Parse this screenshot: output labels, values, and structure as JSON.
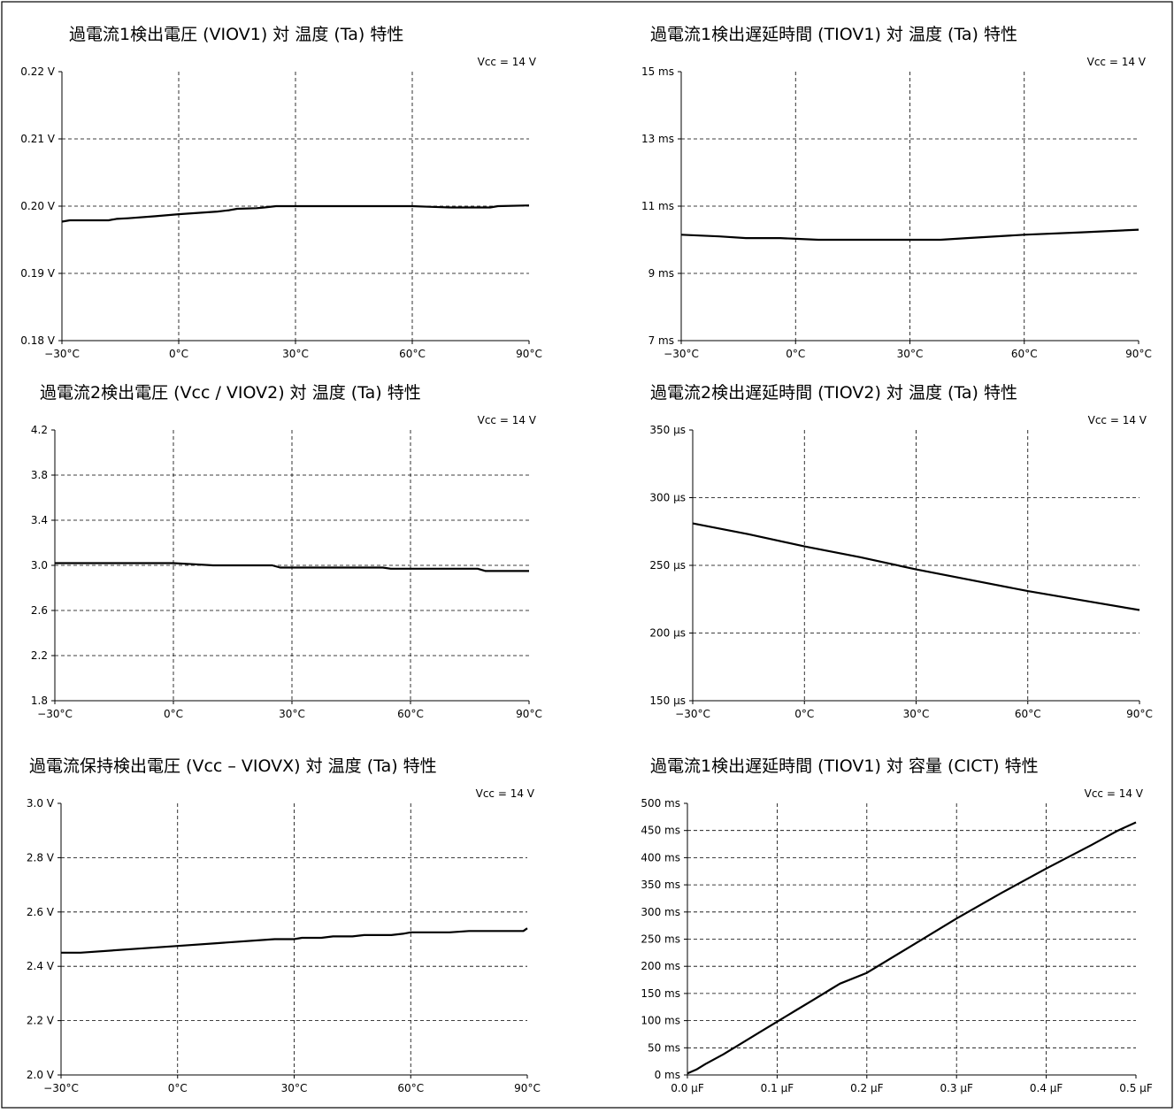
{
  "chart_data": [
    {
      "type": "line",
      "title": "過電流1検出電圧 (VIOV1) 対 温度 (Ta) 特性",
      "condition": "Vcc = 14 V",
      "xlim": [
        -30,
        90
      ],
      "ylim": [
        0.18,
        0.22
      ],
      "xticks": [
        -30,
        0,
        30,
        60,
        90
      ],
      "yticks": [
        0.18,
        0.19,
        0.2,
        0.21,
        0.22
      ],
      "xtick_labels": [
        "−30°C",
        "0°C",
        "30°C",
        "60°C",
        "90°C"
      ],
      "ytick_labels": [
        "0.18 V",
        "0.19 V",
        "0.20 V",
        "0.21 V",
        "0.22 V"
      ],
      "x": [
        -30,
        -28,
        -18,
        -16,
        -13,
        -6,
        0,
        5,
        10,
        13,
        15,
        20,
        22,
        25,
        30,
        40,
        50,
        60,
        65,
        70,
        75,
        80,
        82,
        90
      ],
      "y": [
        0.1977,
        0.1979,
        0.1979,
        0.1981,
        0.1982,
        0.1985,
        0.1988,
        0.199,
        0.1992,
        0.1994,
        0.1996,
        0.1997,
        0.1998,
        0.2,
        0.2,
        0.2,
        0.2,
        0.2,
        0.1999,
        0.1998,
        0.1998,
        0.1998,
        0.2,
        0.2001
      ]
    },
    {
      "type": "line",
      "title": "過電流1検出遅延時間 (TIOV1) 対 温度 (Ta) 特性",
      "condition": "Vcc = 14 V",
      "xlim": [
        -30,
        90
      ],
      "ylim": [
        7,
        15
      ],
      "xticks": [
        -30,
        0,
        30,
        60,
        90
      ],
      "yticks": [
        7,
        9,
        11,
        13,
        15
      ],
      "xtick_labels": [
        "−30°C",
        "0°C",
        "30°C",
        "60°C",
        "90°C"
      ],
      "ytick_labels": [
        "7 ms",
        "9 ms",
        "11 ms",
        "13 ms",
        "15 ms"
      ],
      "x": [
        -30,
        -20,
        -13,
        -4,
        0,
        6,
        20,
        30,
        38,
        45,
        60,
        75,
        90
      ],
      "y": [
        10.15,
        10.1,
        10.05,
        10.05,
        10.03,
        10.0,
        10.0,
        10.0,
        10.0,
        10.05,
        10.15,
        10.22,
        10.3
      ]
    },
    {
      "type": "line",
      "title": "過電流2検出電圧 (Vcc / VIOV2) 対 温度 (Ta) 特性",
      "condition": "Vcc = 14 V",
      "xlim": [
        -30,
        90
      ],
      "ylim": [
        1.8,
        4.2
      ],
      "xticks": [
        -30,
        0,
        30,
        60,
        90
      ],
      "yticks": [
        1.8,
        2.2,
        2.6,
        3.0,
        3.4,
        3.8,
        4.2
      ],
      "xtick_labels": [
        "−30°C",
        "0°C",
        "30°C",
        "60°C",
        "90°C"
      ],
      "ytick_labels": [
        "1.8",
        "2.2",
        "2.6",
        "3.0",
        "3.4",
        "3.8",
        "4.2"
      ],
      "x": [
        -30,
        -20,
        -10,
        0,
        5,
        10,
        20,
        25,
        27,
        30,
        40,
        50,
        53,
        55,
        60,
        70,
        77,
        79,
        90
      ],
      "y": [
        3.02,
        3.02,
        3.02,
        3.02,
        3.01,
        3.0,
        3.0,
        3.0,
        2.98,
        2.98,
        2.98,
        2.98,
        2.98,
        2.97,
        2.97,
        2.97,
        2.97,
        2.95,
        2.95
      ]
    },
    {
      "type": "line",
      "title": "過電流2検出遅延時間 (TIOV2) 対 温度 (Ta) 特性",
      "condition": "Vcc = 14 V",
      "xlim": [
        -30,
        90
      ],
      "ylim": [
        150,
        350
      ],
      "xticks": [
        -30,
        0,
        30,
        60,
        90
      ],
      "yticks": [
        150,
        200,
        250,
        300,
        350
      ],
      "xtick_labels": [
        "−30°C",
        "0°C",
        "30°C",
        "60°C",
        "90°C"
      ],
      "ytick_labels": [
        "150 µs",
        "200 µs",
        "250 µs",
        "300 µs",
        "350 µs"
      ],
      "x": [
        -30,
        -15,
        0,
        15,
        30,
        45,
        60,
        75,
        90
      ],
      "y": [
        281,
        273,
        264,
        256,
        247,
        239,
        231,
        224,
        217
      ]
    },
    {
      "type": "line",
      "title": "過電流保持検出電圧 (Vcc – VIOVX) 対 温度 (Ta) 特性",
      "condition": "Vcc = 14 V",
      "xlim": [
        -30,
        90
      ],
      "ylim": [
        2.0,
        3.0
      ],
      "xticks": [
        -30,
        0,
        30,
        60,
        90
      ],
      "yticks": [
        2.0,
        2.2,
        2.4,
        2.6,
        2.8,
        3.0
      ],
      "xtick_labels": [
        "−30°C",
        "0°C",
        "30°C",
        "60°C",
        "90°C"
      ],
      "ytick_labels": [
        "2.0 V",
        "2.2 V",
        "2.4 V",
        "2.6 V",
        "2.8 V",
        "3.0 V"
      ],
      "x": [
        -30,
        -25,
        -10,
        0,
        10,
        25,
        30,
        32,
        37,
        40,
        45,
        48,
        55,
        58,
        60,
        70,
        75,
        80,
        89,
        90
      ],
      "y": [
        2.45,
        2.45,
        2.465,
        2.475,
        2.485,
        2.5,
        2.5,
        2.505,
        2.505,
        2.51,
        2.51,
        2.515,
        2.515,
        2.52,
        2.525,
        2.525,
        2.53,
        2.53,
        2.53,
        2.54
      ]
    },
    {
      "type": "line",
      "title": "過電流1検出遅延時間 (TIOV1) 対 容量 (CICT) 特性",
      "condition": "Vcc = 14 V",
      "xlim": [
        0,
        0.5
      ],
      "ylim": [
        0,
        500
      ],
      "xticks": [
        0,
        0.1,
        0.2,
        0.3,
        0.4,
        0.5
      ],
      "yticks": [
        0,
        50,
        100,
        150,
        200,
        250,
        300,
        350,
        400,
        450,
        500
      ],
      "xtick_labels": [
        "0.0 µF",
        "0.1 µF",
        "0.2 µF",
        "0.3 µF",
        "0.4 µF",
        "0.5 µF"
      ],
      "ytick_labels": [
        "0 ms",
        "50 ms",
        "100 ms",
        "150 ms",
        "200 ms",
        "250 ms",
        "300 ms",
        "350 ms",
        "400 ms",
        "450 ms",
        "500 ms"
      ],
      "x": [
        0,
        0.01,
        0.02,
        0.04,
        0.06,
        0.08,
        0.1,
        0.12,
        0.14,
        0.16,
        0.17,
        0.2,
        0.25,
        0.3,
        0.35,
        0.4,
        0.45,
        0.48,
        0.5
      ],
      "y": [
        3,
        10,
        20,
        38,
        58,
        78,
        98,
        118,
        138,
        158,
        168,
        188,
        238,
        288,
        335,
        380,
        423,
        450,
        465
      ]
    }
  ]
}
